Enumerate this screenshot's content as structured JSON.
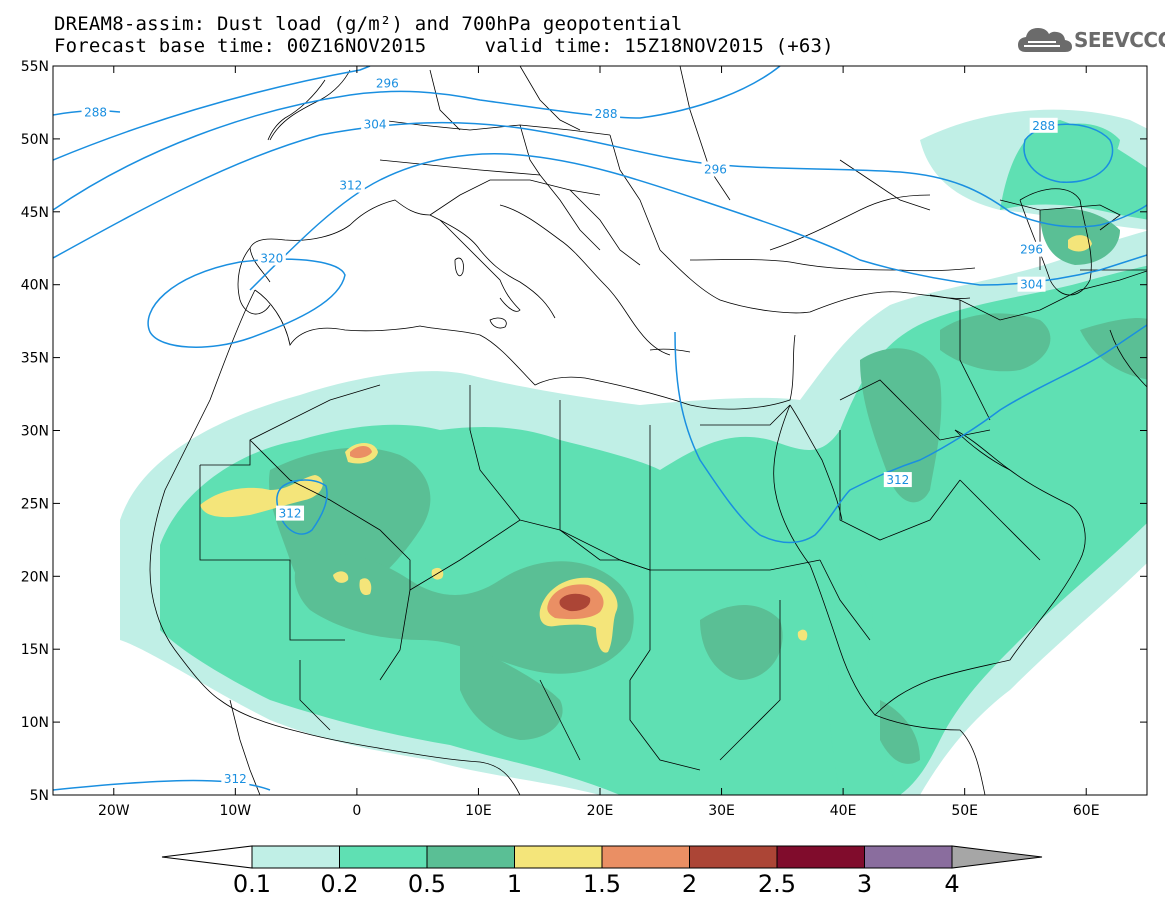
{
  "header": {
    "title_line1": "DREAM8-assim: Dust load (g/m²) and 700hPa geopotential",
    "title_line2": "Forecast base time: 00Z16NOV2015     valid time: 15Z18NOV2015 (+63)"
  },
  "logo": {
    "text": "SEEVCCC",
    "icon": "cloud-icon"
  },
  "map": {
    "lon_range": [
      -25,
      65
    ],
    "lat_range": [
      5,
      55
    ],
    "lat_ticks": [
      {
        "value": 55,
        "label": "55N"
      },
      {
        "value": 50,
        "label": "50N"
      },
      {
        "value": 45,
        "label": "45N"
      },
      {
        "value": 40,
        "label": "40N"
      },
      {
        "value": 35,
        "label": "35N"
      },
      {
        "value": 30,
        "label": "30N"
      },
      {
        "value": 25,
        "label": "25N"
      },
      {
        "value": 20,
        "label": "20N"
      },
      {
        "value": 15,
        "label": "15N"
      },
      {
        "value": 10,
        "label": "10N"
      },
      {
        "value": 5,
        "label": "5N"
      }
    ],
    "lon_ticks": [
      {
        "value": -20,
        "label": "20W"
      },
      {
        "value": -10,
        "label": "10W"
      },
      {
        "value": 0,
        "label": "0"
      },
      {
        "value": 10,
        "label": "10E"
      },
      {
        "value": 20,
        "label": "20E"
      },
      {
        "value": 30,
        "label": "30E"
      },
      {
        "value": 40,
        "label": "40E"
      },
      {
        "value": 50,
        "label": "50E"
      },
      {
        "value": 60,
        "label": "60E"
      }
    ],
    "contour_labels": [
      {
        "text": "288",
        "lon": -21.5,
        "lat": 51.8
      },
      {
        "text": "296",
        "lon": 2.5,
        "lat": 53.8
      },
      {
        "text": "304",
        "lon": 1.5,
        "lat": 51.0
      },
      {
        "text": "312",
        "lon": -0.5,
        "lat": 46.8
      },
      {
        "text": "320",
        "lon": -7.0,
        "lat": 41.8
      },
      {
        "text": "288",
        "lon": 20.5,
        "lat": 51.7
      },
      {
        "text": "296",
        "lon": 29.5,
        "lat": 47.9
      },
      {
        "text": "288",
        "lon": 56.5,
        "lat": 50.9
      },
      {
        "text": "296",
        "lon": 55.5,
        "lat": 42.4
      },
      {
        "text": "304",
        "lon": 55.5,
        "lat": 40.0
      },
      {
        "text": "312",
        "lon": 44.5,
        "lat": 26.6
      },
      {
        "text": "312",
        "lon": -5.5,
        "lat": 24.3
      },
      {
        "text": "312",
        "lon": -10.0,
        "lat": 6.1
      }
    ]
  },
  "colorbar": {
    "colors": [
      "#ffffff",
      "#c0efe6",
      "#5fe0b3",
      "#5abf95",
      "#f4e57a",
      "#ea8f64",
      "#ac4536",
      "#800c2c",
      "#8a6d9e",
      "#a6a6a6"
    ],
    "labels": [
      "0.1",
      "0.2",
      "0.5",
      "1",
      "1.5",
      "2",
      "2.5",
      "3",
      "4"
    ]
  }
}
